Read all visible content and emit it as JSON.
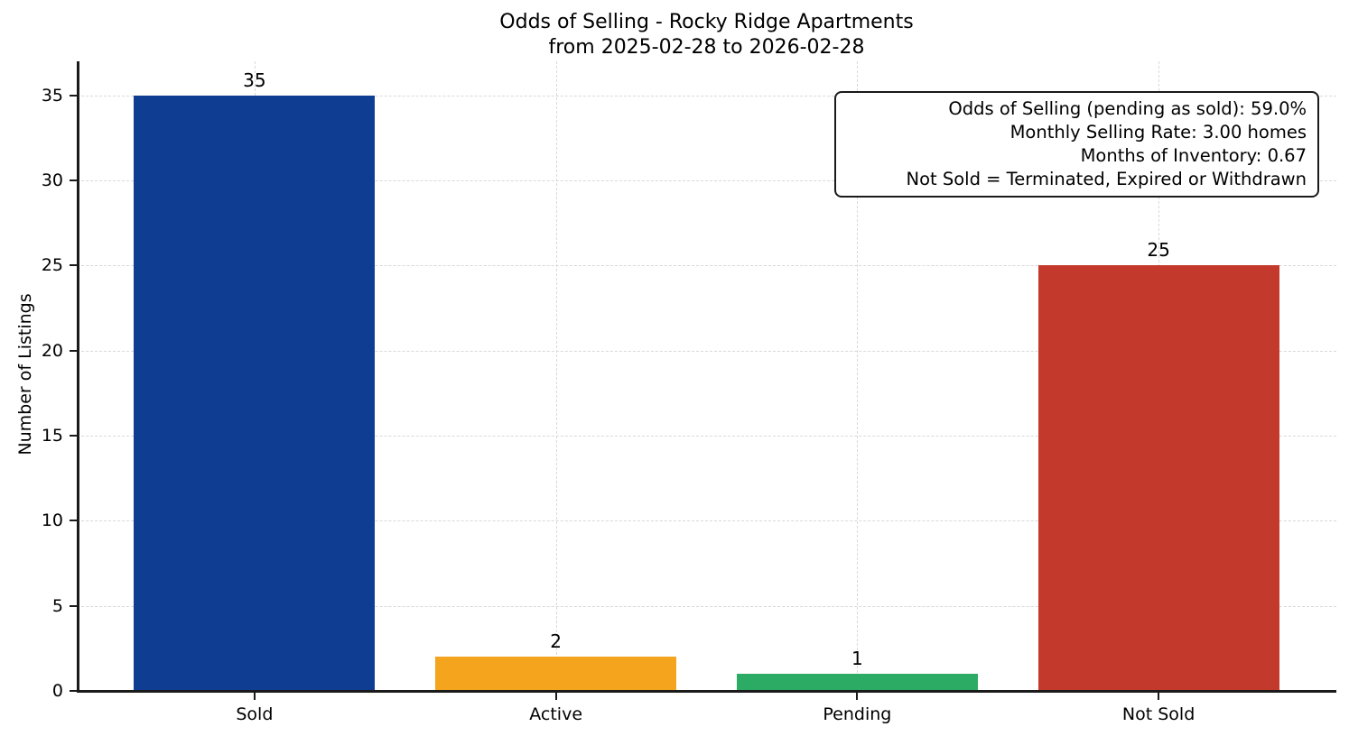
{
  "chart_data": {
    "type": "bar",
    "title": "Odds of Selling - Rocky Ridge Apartments",
    "subtitle": "from 2025-02-28 to 2026-02-28",
    "ylabel": "Number of Listings",
    "xlabel": "",
    "categories": [
      "Sold",
      "Active",
      "Pending",
      "Not Sold"
    ],
    "values": [
      35,
      2,
      1,
      25
    ],
    "bar_colors": [
      "#0e3d91",
      "#f5a41d",
      "#2bab63",
      "#c33a2c"
    ],
    "yticks": [
      0,
      5,
      10,
      15,
      20,
      25,
      30,
      35
    ],
    "ylim": [
      0,
      37
    ],
    "grid": "dashed light-gray horizontal and vertical gridlines, drawn behind bars",
    "legend_position": "none",
    "annotation_lines": [
      "Odds of Selling (pending as sold): 59.0%",
      "Monthly Selling Rate: 3.00 homes",
      "Months of Inventory: 0.67",
      "Not Sold = Terminated, Expired or Withdrawn"
    ]
  }
}
